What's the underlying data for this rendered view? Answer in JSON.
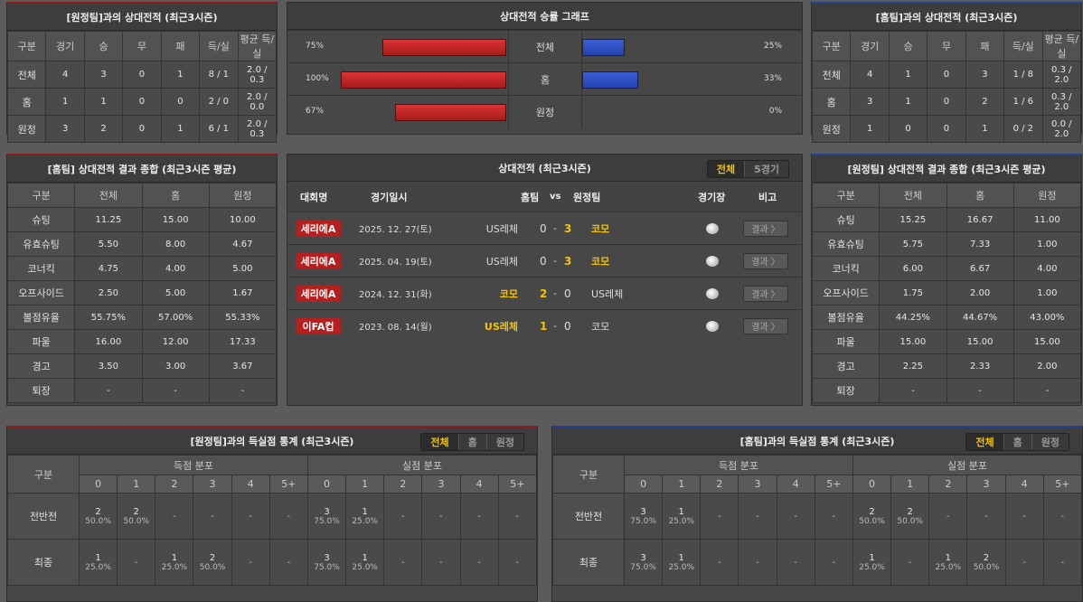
{
  "away_h2h": {
    "title": "[원정팀]과의 상대전적 (최근3시즌)",
    "headers": [
      "구분",
      "경기",
      "승",
      "무",
      "패",
      "득/실",
      "평균 득/실"
    ],
    "rows": [
      [
        "전체",
        "4",
        "3",
        "0",
        "1",
        "8 / 1",
        "2.0 / 0.3"
      ],
      [
        "홈",
        "1",
        "1",
        "0",
        "0",
        "2 / 0",
        "2.0 / 0.0"
      ],
      [
        "원정",
        "3",
        "2",
        "0",
        "1",
        "6 / 1",
        "2.0 / 0.3"
      ]
    ]
  },
  "home_h2h": {
    "title": "[홈팀]과의 상대전적 (최근3시즌)",
    "headers": [
      "구분",
      "경기",
      "승",
      "무",
      "패",
      "득/실",
      "평균 득/실"
    ],
    "rows": [
      [
        "전체",
        "4",
        "1",
        "0",
        "3",
        "1 / 8",
        "0.3 / 2.0"
      ],
      [
        "홈",
        "3",
        "1",
        "0",
        "2",
        "1 / 6",
        "0.3 / 2.0"
      ],
      [
        "원정",
        "1",
        "0",
        "0",
        "1",
        "0 / 2",
        "0.0 / 2.0"
      ]
    ]
  },
  "graph": {
    "title": "상대전적 승률 그래프",
    "colors": {
      "left": "#c62828",
      "right": "#2f4fc4"
    },
    "rows": [
      {
        "label": "전체",
        "left": 75,
        "left_text": "75%",
        "right": 25,
        "right_text": "25%"
      },
      {
        "label": "홈",
        "left": 100,
        "left_text": "100%",
        "right": 33,
        "right_text": "33%"
      },
      {
        "label": "원정",
        "left": 67,
        "left_text": "67%",
        "right": 0,
        "right_text": "0%"
      }
    ]
  },
  "home_summary": {
    "title": "[홈팀] 상대전적 결과 종합 (최근3시즌 평균)",
    "headers": [
      "구분",
      "전체",
      "홈",
      "원정"
    ],
    "rows": [
      [
        "슈팅",
        "11.25",
        "15.00",
        "10.00"
      ],
      [
        "유효슈팅",
        "5.50",
        "8.00",
        "4.67"
      ],
      [
        "코너킥",
        "4.75",
        "4.00",
        "5.00"
      ],
      [
        "오프사이드",
        "2.50",
        "5.00",
        "1.67"
      ],
      [
        "볼점유율",
        "55.75%",
        "57.00%",
        "55.33%"
      ],
      [
        "파울",
        "16.00",
        "12.00",
        "17.33"
      ],
      [
        "경고",
        "3.50",
        "3.00",
        "3.67"
      ],
      [
        "퇴장",
        "-",
        "-",
        "-"
      ]
    ]
  },
  "away_summary": {
    "title": "[원정팀] 상대전적 결과 종합 (최근3시즌 평균)",
    "headers": [
      "구분",
      "전체",
      "홈",
      "원정"
    ],
    "rows": [
      [
        "슈팅",
        "15.25",
        "16.67",
        "11.00"
      ],
      [
        "유효슈팅",
        "5.75",
        "7.33",
        "1.00"
      ],
      [
        "코너킥",
        "6.00",
        "6.67",
        "4.00"
      ],
      [
        "오프사이드",
        "1.75",
        "2.00",
        "1.00"
      ],
      [
        "볼점유율",
        "44.25%",
        "44.67%",
        "43.00%"
      ],
      [
        "파울",
        "15.00",
        "15.00",
        "15.00"
      ],
      [
        "경고",
        "2.25",
        "2.33",
        "2.00"
      ],
      [
        "퇴장",
        "-",
        "-",
        "-"
      ]
    ]
  },
  "matches": {
    "title": "상대전적 (최근3시즌)",
    "toggle": [
      "전체",
      "5경기"
    ],
    "headers": {
      "league": "대회명",
      "date": "경기일시",
      "home": "홈팀",
      "vs": "vs",
      "away": "원정팀",
      "venue": "경기장",
      "note": "비고"
    },
    "rows": [
      {
        "league": "세리에A",
        "date": "2025. 12. 27(토)",
        "home": "US레체",
        "hs": "0",
        "as": "3",
        "away": "코모",
        "winner": "away",
        "button": "결과 〉"
      },
      {
        "league": "세리에A",
        "date": "2025. 04. 19(토)",
        "home": "US레체",
        "hs": "0",
        "as": "3",
        "away": "코모",
        "winner": "away",
        "button": "결과 〉"
      },
      {
        "league": "세리에A",
        "date": "2024. 12. 31(화)",
        "home": "코모",
        "hs": "2",
        "as": "0",
        "away": "US레체",
        "winner": "home",
        "button": "결과 〉"
      },
      {
        "league": "이FA컵",
        "date": "2023. 08. 14(월)",
        "home": "US레체",
        "hs": "1",
        "as": "0",
        "away": "코모",
        "winner": "home",
        "button": "결과 〉"
      }
    ]
  },
  "away_goals": {
    "title": "[원정팀]과의 득실점 통계 (최근3시즌)",
    "toggle": [
      "전체",
      "홈",
      "원정"
    ],
    "col_label": "구분",
    "scored": "득점 분포",
    "conceded": "실점 분포",
    "bins": [
      "0",
      "1",
      "2",
      "3",
      "4",
      "5+"
    ],
    "rows": [
      {
        "label": "전반전",
        "cells": [
          [
            "2",
            "50.0%"
          ],
          [
            "2",
            "50.0%"
          ],
          [
            "-"
          ],
          [
            "-"
          ],
          [
            "-"
          ],
          [
            "-"
          ],
          [
            "3",
            "75.0%"
          ],
          [
            "1",
            "25.0%"
          ],
          [
            "-"
          ],
          [
            "-"
          ],
          [
            "-"
          ],
          [
            "-"
          ]
        ]
      },
      {
        "label": "최종",
        "cells": [
          [
            "1",
            "25.0%"
          ],
          [
            "-"
          ],
          [
            "1",
            "25.0%"
          ],
          [
            "2",
            "50.0%"
          ],
          [
            "-"
          ],
          [
            "-"
          ],
          [
            "3",
            "75.0%"
          ],
          [
            "1",
            "25.0%"
          ],
          [
            "-"
          ],
          [
            "-"
          ],
          [
            "-"
          ],
          [
            "-"
          ]
        ]
      }
    ]
  },
  "home_goals": {
    "title": "[홈팀]과의 득실점 통계 (최근3시즌)",
    "toggle": [
      "전체",
      "홈",
      "원정"
    ],
    "col_label": "구분",
    "scored": "득점 분포",
    "conceded": "실점 분포",
    "bins": [
      "0",
      "1",
      "2",
      "3",
      "4",
      "5+"
    ],
    "rows": [
      {
        "label": "전반전",
        "cells": [
          [
            "3",
            "75.0%"
          ],
          [
            "1",
            "25.0%"
          ],
          [
            "-"
          ],
          [
            "-"
          ],
          [
            "-"
          ],
          [
            "-"
          ],
          [
            "2",
            "50.0%"
          ],
          [
            "2",
            "50.0%"
          ],
          [
            "-"
          ],
          [
            "-"
          ],
          [
            "-"
          ],
          [
            "-"
          ]
        ]
      },
      {
        "label": "최종",
        "cells": [
          [
            "3",
            "75.0%"
          ],
          [
            "1",
            "25.0%"
          ],
          [
            "-"
          ],
          [
            "-"
          ],
          [
            "-"
          ],
          [
            "-"
          ],
          [
            "1",
            "25.0%"
          ],
          [
            "-"
          ],
          [
            "1",
            "25.0%"
          ],
          [
            "2",
            "50.0%"
          ],
          [
            "-"
          ],
          [
            "-"
          ]
        ]
      }
    ]
  }
}
